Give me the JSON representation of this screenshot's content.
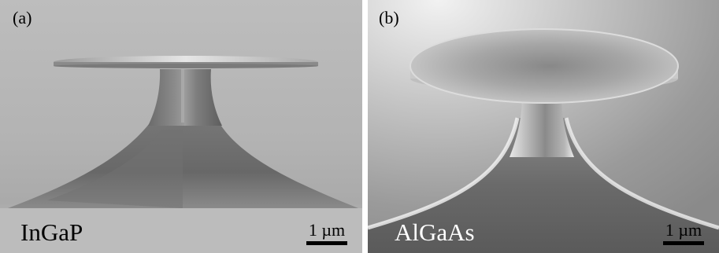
{
  "panel_a": {
    "label": "(a)",
    "material": "InGaP",
    "scale_bar": "1 µm"
  },
  "panel_b": {
    "label": "(b)",
    "material": "AlGaAs",
    "scale_bar": "1 µm"
  }
}
